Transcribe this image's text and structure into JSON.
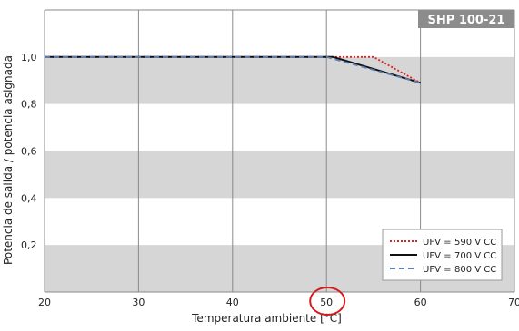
{
  "colors": {
    "band": "#d6d6d6",
    "grid": "#8a8a8a",
    "badge_bg": "#8c8c8c",
    "badge_text": "#ffffff",
    "highlight_circle": "#d61a1a"
  },
  "chart_data": {
    "type": "line",
    "title": "SHP 100-21",
    "xlabel": "Temperatura ambiente [°C]",
    "ylabel": "Potencia de salida / potencia asignada",
    "xlim": [
      20,
      70
    ],
    "ylim": [
      0,
      1.2
    ],
    "x_ticks": [
      20,
      30,
      40,
      50,
      60,
      70
    ],
    "x_tick_labels": [
      "20",
      "30",
      "40",
      "50",
      "60",
      "70"
    ],
    "y_ticks": [
      0.2,
      0.4,
      0.6,
      0.8,
      1.0
    ],
    "y_tick_labels": [
      "0,2",
      "0,4",
      "0,6",
      "0,8",
      "1,0"
    ],
    "grid": true,
    "shaded_bands": [
      [
        0,
        0.2
      ],
      [
        0.4,
        0.6
      ],
      [
        0.8,
        1.0
      ]
    ],
    "legend_position": "bottom-right",
    "highlight": {
      "type": "ellipse",
      "around_x_tick": "50"
    },
    "series": [
      {
        "label_prefix": "UFV =",
        "name": "590 V CC",
        "color": "#e0201b",
        "dash": "2,2",
        "x": [
          20,
          55,
          60
        ],
        "y": [
          1.0,
          1.0,
          0.89
        ]
      },
      {
        "label_prefix": "UFV =",
        "name": "700 V CC",
        "color": "#111111",
        "dash": "",
        "x": [
          20,
          50.7,
          60
        ],
        "y": [
          1.0,
          1.0,
          0.89
        ]
      },
      {
        "label_prefix": "UFV =",
        "name": "800 V CC",
        "color": "#5a7fb5",
        "dash": "6,4",
        "x": [
          20,
          50,
          60
        ],
        "y": [
          1.0,
          1.0,
          0.89
        ]
      }
    ]
  }
}
